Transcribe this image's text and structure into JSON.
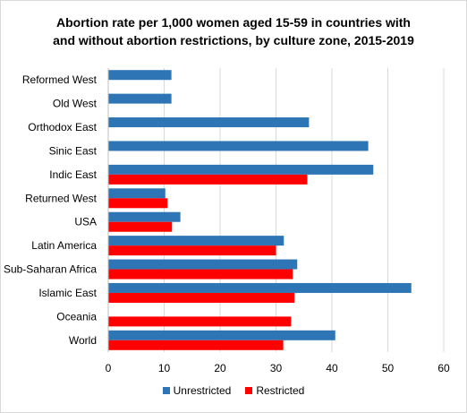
{
  "chart_data": {
    "type": "bar",
    "orientation": "horizontal",
    "title_line1": "Abortion rate per 1,000 women aged 15-59 in countries with",
    "title_line2": "and without abortion restrictions, by culture zone, 2015-2019",
    "categories": [
      "Reformed West",
      "Old West",
      "Orthodox East",
      "Sinic East",
      "Indic East",
      "Returned West",
      "USA",
      "Latin America",
      "Sub-Saharan Africa",
      "Islamic East",
      "Oceania",
      "World"
    ],
    "series": [
      {
        "name": "Unrestricted",
        "color": "#2e75b6",
        "values": [
          11.3,
          11.3,
          35.9,
          46.5,
          47.4,
          10.2,
          12.9,
          31.4,
          33.8,
          54.2,
          null,
          40.6
        ]
      },
      {
        "name": "Restricted",
        "color": "#ff0000",
        "values": [
          null,
          null,
          null,
          null,
          35.6,
          10.6,
          11.4,
          30.0,
          33.0,
          33.3,
          32.7,
          31.3
        ]
      }
    ],
    "xlim": [
      0,
      60
    ],
    "xticks": [
      "0",
      "10",
      "20",
      "30",
      "40",
      "50",
      "60"
    ],
    "grid": true,
    "legend_position": "bottom"
  }
}
